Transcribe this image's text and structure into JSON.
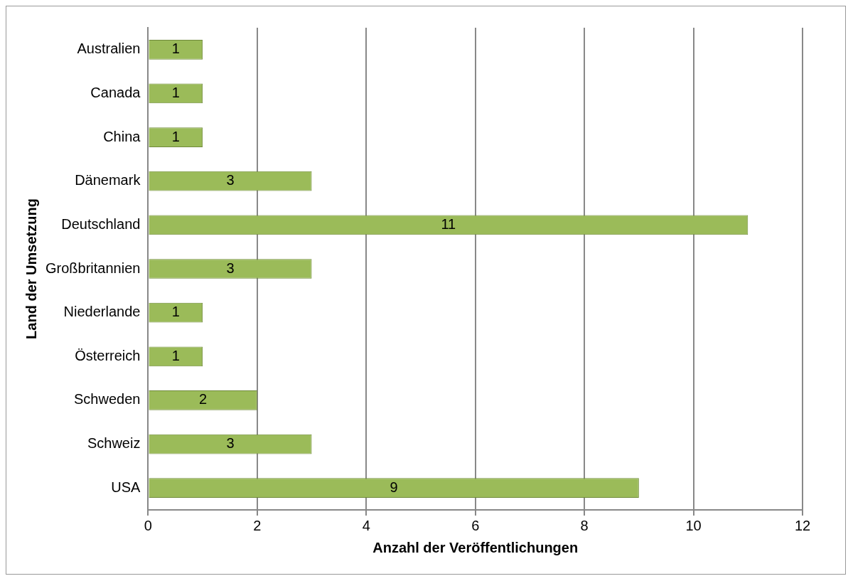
{
  "chart_data": {
    "type": "bar",
    "orientation": "horizontal",
    "xlabel": "Anzahl der Veröffentlichungen",
    "ylabel": "Land der Umsetzung",
    "categories": [
      "Australien",
      "Canada",
      "China",
      "Dänemark",
      "Deutschland",
      "Großbritannien",
      "Niederlande",
      "Österreich",
      "Schweden",
      "Schweiz",
      "USA"
    ],
    "values": [
      1,
      1,
      1,
      3,
      11,
      3,
      1,
      1,
      2,
      3,
      9
    ],
    "color": "#9bbb59",
    "xlim": [
      0,
      12
    ],
    "xticks": [
      0,
      2,
      4,
      6,
      8,
      10,
      12
    ],
    "grid": "x",
    "data_labels": true,
    "legend": false
  }
}
